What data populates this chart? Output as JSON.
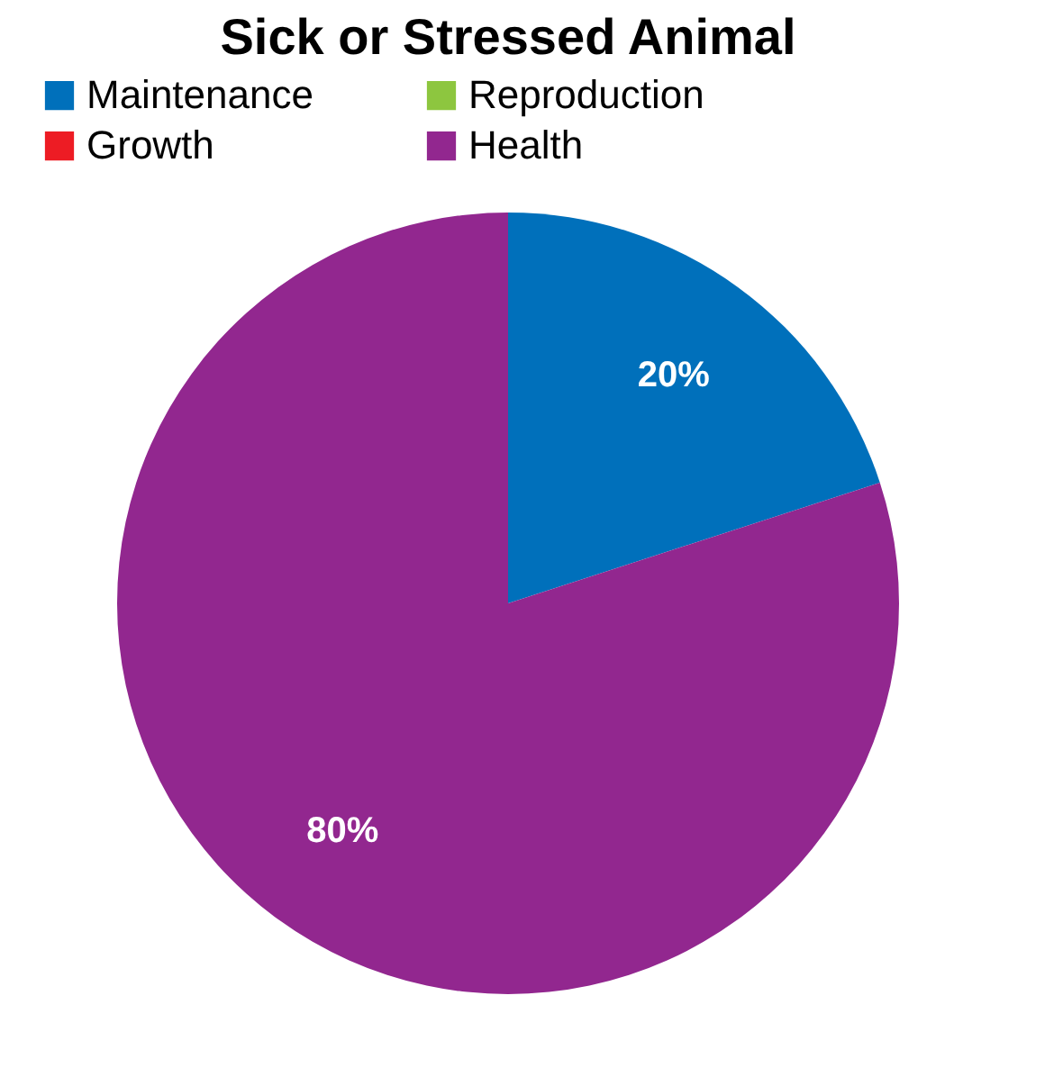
{
  "chart_data": {
    "type": "pie",
    "title": "Sick or Stressed Animal",
    "categories": [
      "Maintenance",
      "Reproduction",
      "Growth",
      "Health"
    ],
    "values": [
      20,
      0,
      0,
      80
    ],
    "colors": [
      "#0070bb",
      "#8dc63f",
      "#ed1c24",
      "#92278f"
    ],
    "value_labels": [
      "20%",
      null,
      null,
      "80%"
    ],
    "legend": "top"
  }
}
